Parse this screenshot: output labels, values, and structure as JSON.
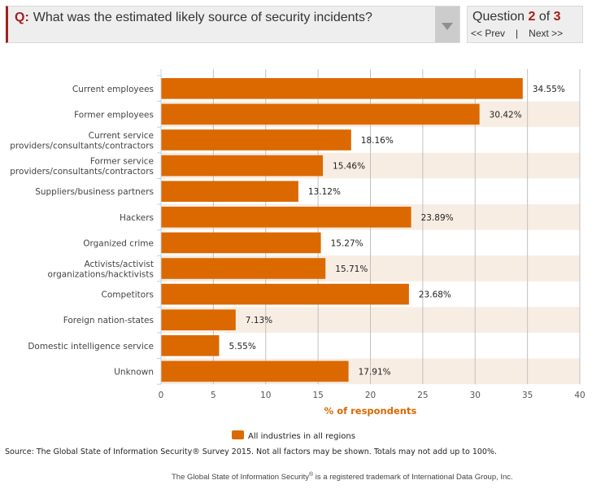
{
  "question": {
    "prefix": "Q:",
    "text": "What was the estimated likely source of security incidents?",
    "dropdown_icon": "caret-down-icon"
  },
  "navigation": {
    "label": "Question",
    "current": "2",
    "of_label": "of",
    "total": "3",
    "prev_label": "<< Prev",
    "separator": "|",
    "next_label": "Next >>"
  },
  "colors": {
    "accent": "#a32020",
    "bar": "#dc6900",
    "band": "#f8ede3",
    "grid": "#c0c0c0"
  },
  "chart_data": {
    "type": "bar",
    "orientation": "horizontal",
    "title": "What was the estimated likely source of security incidents?",
    "categories": [
      [
        "Current employees"
      ],
      [
        "Former employees"
      ],
      [
        "Current service",
        "providers/consultants/contractors"
      ],
      [
        "Former service",
        "providers/consultants/contractors"
      ],
      [
        "Suppliers/business partners"
      ],
      [
        "Hackers"
      ],
      [
        "Organized crime"
      ],
      [
        "Activists/activist",
        "organizations/hacktivists"
      ],
      [
        "Competitors"
      ],
      [
        "Foreign nation-states"
      ],
      [
        "Domestic intelligence service"
      ],
      [
        "Unknown"
      ]
    ],
    "series": [
      {
        "name": "All industries in all regions",
        "values": [
          34.55,
          30.42,
          18.16,
          15.46,
          13.12,
          23.89,
          15.27,
          15.71,
          23.68,
          7.13,
          5.55,
          17.91
        ],
        "labels": [
          "34.55%",
          "30.42%",
          "18.16%",
          "15.46%",
          "13.12%",
          "23.89%",
          "15.27%",
          "15.71%",
          "23.68%",
          "7.13%",
          "5.55%",
          "17.91%"
        ]
      }
    ],
    "xlabel": "% of respondents",
    "ylabel": "",
    "xlim": [
      0,
      40
    ],
    "xticks": [
      0,
      5,
      10,
      15,
      20,
      25,
      30,
      35,
      40
    ],
    "grid": true,
    "legend_position": "bottom-center",
    "alternating_row_bands": true
  },
  "footer": {
    "source": "Source: The Global State of Information Security® Survey 2015. Not all factors may be shown. Totals may not add up to 100%.",
    "trademark_pre": "The Global State of Information Security",
    "trademark_mark": "®",
    "trademark_post": " is a registered trademark of International Data Group, Inc."
  }
}
